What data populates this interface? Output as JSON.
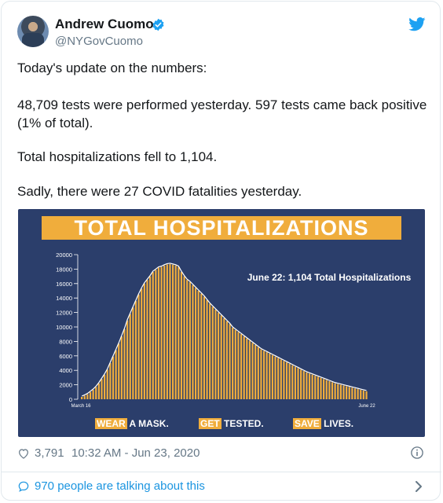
{
  "tweet": {
    "author_name": "Andrew Cuomo",
    "handle": "@NYGovCuomo",
    "lines": [
      "Today's update on the numbers:",
      "48,709 tests were performed yesterday. 597 tests came back positive",
      "(1% of total).",
      "Total hospitalizations fell to 1,104.",
      "Sadly, there were 27 COVID fatalities yesterday."
    ],
    "likes": "3,791",
    "timestamp": "10:32 AM - Jun 23, 2020",
    "talking": "970 people are talking about this"
  },
  "image": {
    "banner_title": "TOTAL HOSPITALIZATIONS",
    "annotation": "June 22: 1,104 Total Hospitalizations",
    "tag1_hl": "WEAR",
    "tag1_rest": " A MASK.",
    "tag2_hl": "GET",
    "tag2_rest": " TESTED.",
    "tag3_hl": "SAVE",
    "tag3_rest": " LIVES."
  },
  "colors": {
    "panel": "#2b3e6b",
    "bar": "#f0ad3c",
    "link": "#1b95e0",
    "muted": "#657786"
  },
  "icons": [
    "verified-badge-icon",
    "twitter-bird-icon",
    "heart-icon",
    "info-icon",
    "speech-bubble-icon",
    "chevron-right-icon"
  ],
  "chart_data": {
    "type": "bar",
    "ylim": [
      0,
      20000
    ],
    "y_ticks": [
      "0",
      "2000",
      "4000",
      "6000",
      "8000",
      "10000",
      "12000",
      "14000",
      "16000",
      "18000",
      "20000"
    ],
    "x_start_label": "March 16",
    "x_end_label": "June 22",
    "values": [
      326,
      500,
      700,
      1000,
      1300,
      1700,
      2200,
      2800,
      3400,
      4100,
      5000,
      5900,
      6800,
      7700,
      8700,
      9700,
      10900,
      11800,
      12700,
      13600,
      14500,
      15300,
      16000,
      16500,
      17000,
      17600,
      17900,
      18200,
      18300,
      18500,
      18650,
      18700,
      18600,
      18500,
      18300,
      17600,
      17000,
      16500,
      16200,
      15800,
      15400,
      15000,
      14600,
      14200,
      13700,
      13200,
      12800,
      12400,
      12000,
      11600,
      11200,
      10800,
      10400,
      9900,
      9600,
      9300,
      9000,
      8700,
      8400,
      8100,
      7800,
      7500,
      7200,
      6900,
      6700,
      6500,
      6300,
      6100,
      5900,
      5700,
      5500,
      5300,
      5100,
      4900,
      4700,
      4500,
      4300,
      4100,
      3900,
      3700,
      3550,
      3400,
      3250,
      3100,
      2950,
      2800,
      2650,
      2500,
      2350,
      2200,
      2100,
      2000,
      1900,
      1800,
      1700,
      1600,
      1500,
      1400,
      1300,
      1200,
      1104
    ]
  }
}
